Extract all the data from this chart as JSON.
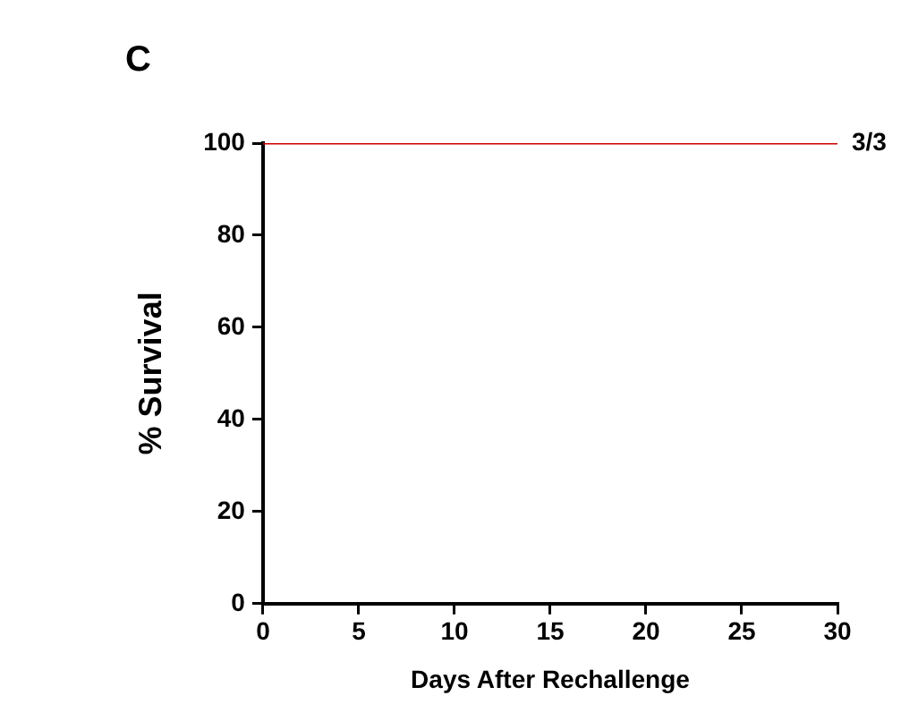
{
  "chart_data": {
    "type": "step",
    "title": "C",
    "xlabel": "Days After Rechallenge",
    "ylabel": "% Survival",
    "x": [
      0,
      30
    ],
    "series": [
      {
        "color": "#cc0000",
        "values": [
          100,
          100
        ]
      }
    ],
    "xlim": [
      0,
      30
    ],
    "xticks": [
      0,
      5,
      10,
      15,
      20,
      25,
      30
    ],
    "ylim": [
      0,
      100
    ],
    "yticks": [
      0,
      20,
      40,
      60,
      80,
      100
    ],
    "annotations": [
      {
        "text": "3/3",
        "x": 30,
        "y": 100
      }
    ],
    "grid": false,
    "legend": false,
    "marker": "none"
  }
}
